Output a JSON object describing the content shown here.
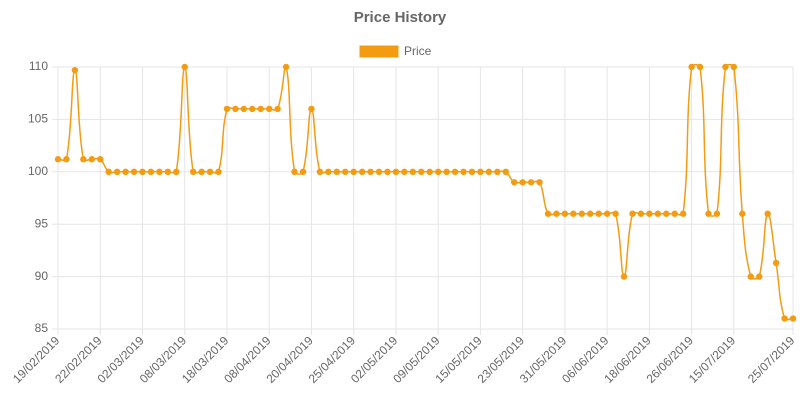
{
  "chart_data": {
    "type": "line",
    "title": "Price History",
    "categories": [
      "19/02/2019",
      null,
      null,
      null,
      null,
      "22/02/2019",
      null,
      null,
      null,
      null,
      "02/03/2019",
      null,
      null,
      null,
      null,
      "08/03/2019",
      null,
      null,
      null,
      null,
      "18/03/2019",
      null,
      null,
      null,
      null,
      "08/04/2019",
      null,
      null,
      null,
      null,
      "20/04/2019",
      null,
      null,
      null,
      null,
      "25/04/2019",
      null,
      null,
      null,
      null,
      "02/05/2019",
      null,
      null,
      null,
      null,
      "09/05/2019",
      null,
      null,
      null,
      null,
      "15/05/2019",
      null,
      null,
      null,
      null,
      "23/05/2019",
      null,
      null,
      null,
      null,
      "31/05/2019",
      null,
      null,
      null,
      null,
      "06/06/2019",
      null,
      null,
      null,
      null,
      "18/06/2019",
      null,
      null,
      null,
      null,
      "26/06/2019",
      null,
      null,
      null,
      null,
      "15/07/2019",
      null,
      null,
      null,
      null,
      null,
      null,
      "25/07/2019"
    ],
    "series": [
      {
        "name": "Price",
        "color": "#f39c12",
        "values": [
          101.2,
          101.2,
          109.7,
          101.2,
          101.2,
          101.2,
          100,
          100,
          100,
          100,
          100,
          100,
          100,
          100,
          100,
          110,
          100,
          100,
          100,
          100,
          106,
          106,
          106,
          106,
          106,
          106,
          106,
          110,
          100,
          100,
          106,
          100,
          100,
          100,
          100,
          100,
          100,
          100,
          100,
          100,
          100,
          100,
          100,
          100,
          100,
          100,
          100,
          100,
          100,
          100,
          100,
          100,
          100,
          100,
          99,
          99,
          99,
          99,
          96,
          96,
          96,
          96,
          96,
          96,
          96,
          96,
          96,
          90,
          96,
          96,
          96,
          96,
          96,
          96,
          96,
          110,
          110,
          96,
          96,
          110,
          110,
          96,
          90,
          90,
          96,
          91.3,
          86,
          86
        ]
      }
    ],
    "ylim": [
      85,
      110
    ],
    "yticks": [
      85,
      90,
      95,
      100,
      105,
      110
    ],
    "grid": true,
    "legend": "top"
  }
}
